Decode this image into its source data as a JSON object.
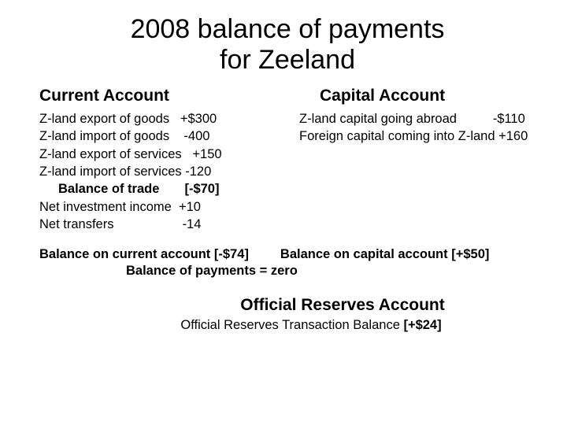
{
  "title_line1": "2008 balance of payments",
  "title_line2": "for Zeeland",
  "current": {
    "heading": "Current Account",
    "items": [
      {
        "label": "Z-land export of goods   ",
        "value": "+$300"
      },
      {
        "label": "Z-land import of goods    ",
        "value": "-400"
      },
      {
        "label": "Z-land export of services   ",
        "value": "+150"
      },
      {
        "label": "Z-land import of services ",
        "value": "-120"
      }
    ],
    "balance_trade_label": "Balance of trade       ",
    "balance_trade_value": "[-$70]",
    "nii_label": "Net investment income  ",
    "nii_value": "+10",
    "nt_label": "Net transfers                   ",
    "nt_value": "-14"
  },
  "capital": {
    "heading": "Capital Account",
    "items": [
      {
        "label": "Z-land capital going abroad          ",
        "value": "-$110"
      },
      {
        "label": "Foreign capital coming into Z-land ",
        "value": "+160"
      }
    ]
  },
  "balances": {
    "current_label": "Balance on current account  ",
    "current_value": "[-$74]",
    "capital_label": "Balance on capital account  ",
    "capital_value": "[+$50]",
    "bop_zero": "Balance of payments = zero"
  },
  "official": {
    "heading": "Official Reserves Account",
    "line_label": "Official Reserves Transaction Balance ",
    "line_value": "[+$24]"
  }
}
